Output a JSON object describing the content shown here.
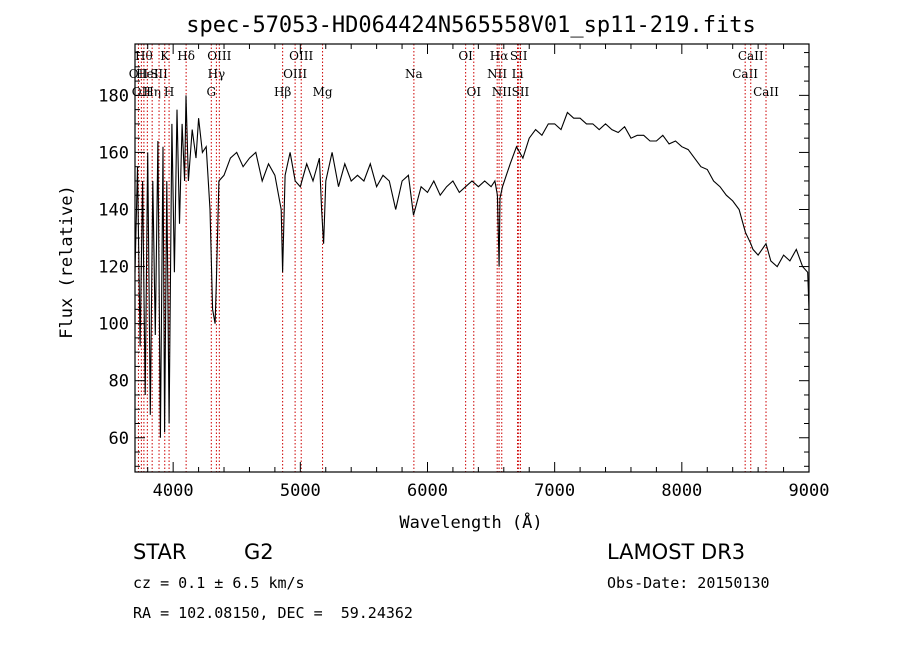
{
  "chart_data": {
    "type": "line",
    "title": "spec-57053-HD064424N565558V01_sp11-219.fits",
    "xlabel": "Wavelength (Å)",
    "ylabel": "Flux (relative)",
    "xlim": [
      3700,
      9000
    ],
    "ylim": [
      48,
      198
    ],
    "x_ticks": [
      4000,
      5000,
      6000,
      7000,
      8000,
      9000
    ],
    "y_ticks": [
      60,
      80,
      100,
      120,
      140,
      160,
      180
    ],
    "grid": false,
    "line_color": "#000000",
    "marker_color": "#cc0000",
    "series": [
      {
        "name": "spectrum",
        "x": [
          3700,
          3720,
          3740,
          3760,
          3780,
          3800,
          3820,
          3840,
          3860,
          3880,
          3900,
          3920,
          3933,
          3950,
          3968,
          3990,
          4010,
          4030,
          4050,
          4070,
          4090,
          4101,
          4120,
          4150,
          4180,
          4200,
          4230,
          4260,
          4290,
          4310,
          4330,
          4340,
          4360,
          4400,
          4450,
          4500,
          4550,
          4600,
          4650,
          4700,
          4750,
          4800,
          4850,
          4861,
          4880,
          4920,
          4960,
          5000,
          5050,
          5100,
          5150,
          5167,
          5183,
          5200,
          5250,
          5300,
          5350,
          5400,
          5450,
          5500,
          5550,
          5600,
          5650,
          5700,
          5750,
          5800,
          5850,
          5890,
          5950,
          6000,
          6050,
          6100,
          6150,
          6200,
          6250,
          6300,
          6350,
          6400,
          6450,
          6500,
          6530,
          6550,
          6563,
          6570,
          6590,
          6620,
          6650,
          6700,
          6750,
          6800,
          6850,
          6900,
          6950,
          7000,
          7050,
          7100,
          7150,
          7200,
          7250,
          7300,
          7350,
          7400,
          7450,
          7500,
          7550,
          7600,
          7650,
          7700,
          7750,
          7800,
          7850,
          7900,
          7950,
          8000,
          8050,
          8100,
          8150,
          8200,
          8250,
          8300,
          8350,
          8400,
          8450,
          8500,
          8542,
          8560,
          8600,
          8662,
          8700,
          8750,
          8800,
          8850,
          8900,
          8950,
          8990,
          9000
        ],
        "y": [
          118,
          155,
          92,
          150,
          75,
          160,
          68,
          150,
          96,
          164,
          60,
          162,
          62,
          150,
          65,
          170,
          118,
          175,
          135,
          170,
          150,
          180,
          150,
          168,
          158,
          172,
          160,
          162,
          140,
          105,
          100,
          115,
          150,
          152,
          158,
          160,
          155,
          158,
          160,
          150,
          156,
          152,
          140,
          118,
          152,
          160,
          150,
          148,
          156,
          150,
          158,
          140,
          128,
          150,
          160,
          148,
          156,
          150,
          152,
          150,
          156,
          148,
          152,
          150,
          140,
          150,
          152,
          138,
          148,
          146,
          150,
          145,
          148,
          150,
          146,
          148,
          150,
          148,
          150,
          148,
          150,
          145,
          120,
          144,
          148,
          152,
          156,
          162,
          158,
          165,
          168,
          166,
          170,
          170,
          168,
          174,
          172,
          172,
          170,
          170,
          168,
          170,
          168,
          167,
          169,
          165,
          166,
          166,
          164,
          164,
          166,
          163,
          164,
          162,
          161,
          158,
          155,
          154,
          150,
          148,
          145,
          143,
          140,
          132,
          128,
          126,
          124,
          128,
          122,
          120,
          124,
          122,
          126,
          120,
          118,
          105
        ]
      }
    ],
    "line_markers": [
      {
        "lambda": 3727,
        "label": "OII",
        "row": 1
      },
      {
        "lambda": 3750,
        "label": "OII",
        "row": 2
      },
      {
        "lambda": 3770,
        "label": "Hθ",
        "row": 0
      },
      {
        "lambda": 3797,
        "label": "HeI",
        "row": 1
      },
      {
        "lambda": 3835,
        "label": "Hη",
        "row": 2
      },
      {
        "lambda": 3889,
        "label": "SII",
        "row": 1
      },
      {
        "lambda": 3934,
        "label": "K",
        "row": 0
      },
      {
        "lambda": 3968,
        "label": "H",
        "row": 2
      },
      {
        "lambda": 4102,
        "label": "Hδ",
        "row": 0
      },
      {
        "lambda": 4300,
        "label": "G",
        "row": 2
      },
      {
        "lambda": 4340,
        "label": "Hγ",
        "row": 1
      },
      {
        "lambda": 4363,
        "label": "OIII",
        "row": 0
      },
      {
        "lambda": 4861,
        "label": "Hβ",
        "row": 2
      },
      {
        "lambda": 4959,
        "label": "OIII",
        "row": 1
      },
      {
        "lambda": 5007,
        "label": "OIII",
        "row": 0
      },
      {
        "lambda": 5175,
        "label": "Mg",
        "row": 2
      },
      {
        "lambda": 5893,
        "label": "Na",
        "row": 1
      },
      {
        "lambda": 6300,
        "label": "OI",
        "row": 0
      },
      {
        "lambda": 6364,
        "label": "OI",
        "row": 2
      },
      {
        "lambda": 6548,
        "label": "NII",
        "row": 1
      },
      {
        "lambda": 6563,
        "label": "Hα",
        "row": 0
      },
      {
        "lambda": 6584,
        "label": "NII",
        "row": 2
      },
      {
        "lambda": 6708,
        "label": "Li",
        "row": 1
      },
      {
        "lambda": 6717,
        "label": "SII",
        "row": 0
      },
      {
        "lambda": 6731,
        "label": "SII",
        "row": 2
      },
      {
        "lambda": 8498,
        "label": "CaII",
        "row": 1
      },
      {
        "lambda": 8542,
        "label": "CaII",
        "row": 0
      },
      {
        "lambda": 8662,
        "label": "CaII",
        "row": 2
      }
    ]
  },
  "info": {
    "class": "STAR",
    "subclass": "G2",
    "cz": "cz = 0.1 ± 6.5 km/s",
    "coords": "RA = 102.08150, DEC =  59.24362",
    "survey": "LAMOST DR3",
    "obs_date": "Obs-Date: 20150130"
  }
}
